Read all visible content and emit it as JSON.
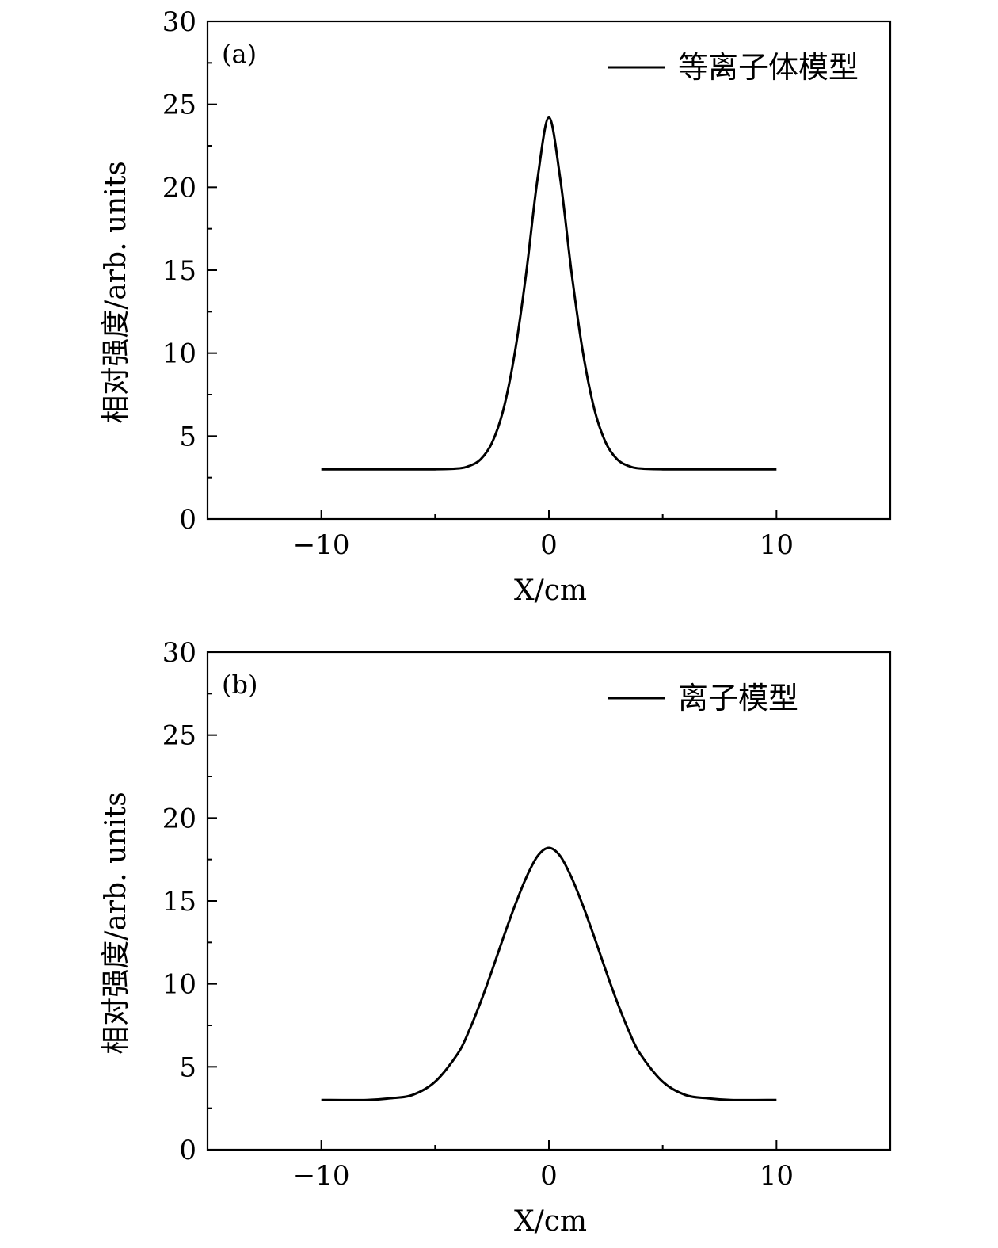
{
  "chart_data": [
    {
      "type": "line",
      "panel_label": "(a)",
      "xlabel": "X/cm",
      "ylabel": "相对强度/arb. units",
      "xlim": [
        -15,
        15
      ],
      "ylim": [
        0,
        30
      ],
      "x_ticks": [
        -10,
        0,
        10
      ],
      "x_tick_labels": [
        "−10",
        "0",
        "10"
      ],
      "y_ticks": [
        0,
        5,
        10,
        15,
        20,
        25,
        30
      ],
      "y_tick_labels": [
        "0",
        "5",
        "10",
        "15",
        "20",
        "25",
        "30"
      ],
      "legend_position": "top-right",
      "grid": false,
      "series": [
        {
          "name": "等离子体模型",
          "color": "#000000",
          "x": [
            -10,
            -8,
            -6,
            -5,
            -4,
            -3.5,
            -3,
            -2.5,
            -2,
            -1.5,
            -1,
            -0.5,
            0,
            0.5,
            1,
            1.5,
            2,
            2.5,
            3,
            3.5,
            4,
            5,
            6,
            8,
            10
          ],
          "values": [
            3.0,
            3.0,
            3.0,
            3.0,
            3.05,
            3.2,
            3.6,
            4.6,
            6.6,
            10.0,
            14.8,
            20.5,
            24.2,
            20.5,
            14.8,
            10.0,
            6.6,
            4.6,
            3.6,
            3.2,
            3.05,
            3.0,
            3.0,
            3.0,
            3.0
          ]
        }
      ]
    },
    {
      "type": "line",
      "panel_label": "(b)",
      "xlabel": "X/cm",
      "ylabel": "相对强度/arb. units",
      "xlim": [
        -15,
        15
      ],
      "ylim": [
        0,
        30
      ],
      "x_ticks": [
        -10,
        0,
        10
      ],
      "x_tick_labels": [
        "−10",
        "0",
        "10"
      ],
      "y_ticks": [
        0,
        5,
        10,
        15,
        20,
        25,
        30
      ],
      "y_tick_labels": [
        "0",
        "5",
        "10",
        "15",
        "20",
        "25",
        "30"
      ],
      "legend_position": "top-right",
      "grid": false,
      "series": [
        {
          "name": "离子模型",
          "color": "#000000",
          "x": [
            -10,
            -8,
            -7,
            -6,
            -5,
            -4,
            -3.5,
            -3,
            -2.5,
            -2,
            -1.5,
            -1,
            -0.5,
            0,
            0.5,
            1,
            1.5,
            2,
            2.5,
            3,
            3.5,
            4,
            5,
            6,
            7,
            8,
            10
          ],
          "values": [
            3.0,
            3.0,
            3.1,
            3.3,
            4.1,
            5.8,
            7.2,
            8.9,
            10.8,
            12.8,
            14.7,
            16.4,
            17.7,
            18.2,
            17.7,
            16.4,
            14.7,
            12.8,
            10.8,
            8.9,
            7.2,
            5.8,
            4.1,
            3.3,
            3.1,
            3.0,
            3.0
          ]
        }
      ]
    }
  ]
}
